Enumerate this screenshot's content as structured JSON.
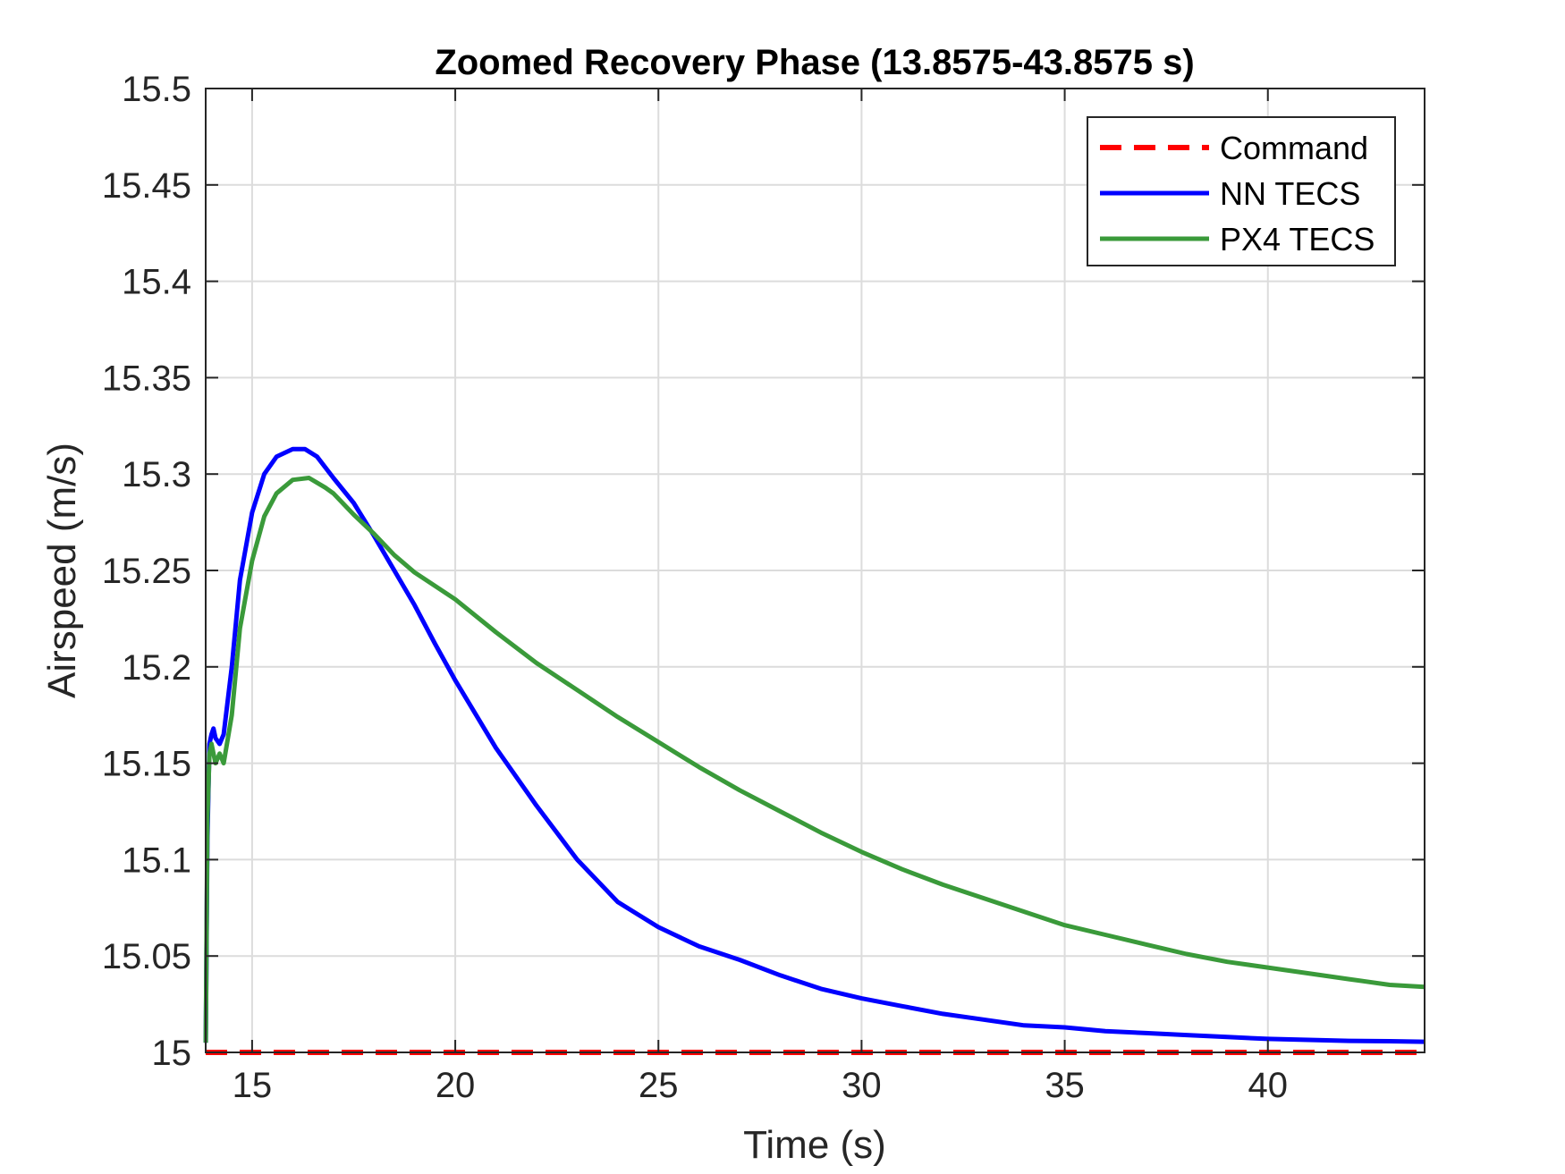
{
  "chart_data": {
    "type": "line",
    "title": "Zoomed Recovery Phase (13.8575-43.8575 s)",
    "xlabel": "Time (s)",
    "ylabel": "Airspeed (m/s)",
    "xlim": [
      13.8575,
      43.8575
    ],
    "ylim": [
      15,
      15.5
    ],
    "xticks": [
      15,
      20,
      25,
      30,
      35,
      40
    ],
    "xtick_labels": [
      "15",
      "20",
      "25",
      "30",
      "35",
      "40"
    ],
    "yticks": [
      15,
      15.05,
      15.1,
      15.15,
      15.2,
      15.25,
      15.3,
      15.35,
      15.4,
      15.45,
      15.5
    ],
    "ytick_labels": [
      "15",
      "15.05",
      "15.1",
      "15.15",
      "15.2",
      "15.25",
      "15.3",
      "15.35",
      "15.4",
      "15.45",
      "15.5"
    ],
    "grid": true,
    "legend_position": "top-right",
    "series": [
      {
        "name": "Command",
        "color": "#ff0000",
        "style": "dashed",
        "x": [
          13.8575,
          43.8575
        ],
        "y": [
          15.0,
          15.0
        ]
      },
      {
        "name": "NN TECS",
        "color": "#0000ff",
        "style": "solid",
        "x": [
          13.86,
          13.9,
          13.95,
          14.0,
          14.05,
          14.1,
          14.2,
          14.3,
          14.5,
          14.7,
          15.0,
          15.3,
          15.6,
          16.0,
          16.3,
          16.6,
          17.0,
          17.5,
          18.0,
          18.5,
          19.0,
          19.5,
          20.0,
          21.0,
          22.0,
          23.0,
          24.0,
          25.0,
          26.0,
          27.0,
          28.0,
          29.0,
          30.0,
          31.0,
          32.0,
          33.0,
          34.0,
          35.0,
          36.0,
          37.0,
          38.0,
          39.0,
          40.0,
          41.0,
          42.0,
          43.0,
          43.8575
        ],
        "y": [
          15.005,
          15.11,
          15.16,
          15.165,
          15.168,
          15.163,
          15.16,
          15.165,
          15.2,
          15.245,
          15.28,
          15.3,
          15.309,
          15.313,
          15.313,
          15.309,
          15.298,
          15.285,
          15.268,
          15.25,
          15.232,
          15.212,
          15.193,
          15.158,
          15.128,
          15.1,
          15.078,
          15.065,
          15.055,
          15.048,
          15.04,
          15.033,
          15.028,
          15.024,
          15.02,
          15.017,
          15.014,
          15.013,
          15.011,
          15.01,
          15.009,
          15.008,
          15.007,
          15.0065,
          15.006,
          15.0058,
          15.0055
        ]
      },
      {
        "name": "PX4 TECS",
        "color": "#3a9a3a",
        "style": "solid",
        "x": [
          13.86,
          13.9,
          13.95,
          14.0,
          14.05,
          14.1,
          14.2,
          14.3,
          14.5,
          14.7,
          15.0,
          15.3,
          15.6,
          16.0,
          16.4,
          16.8,
          17.0,
          17.5,
          18.0,
          18.5,
          19.0,
          20.0,
          21.0,
          22.0,
          23.0,
          24.0,
          25.0,
          26.0,
          27.0,
          28.0,
          29.0,
          30.0,
          31.0,
          32.0,
          33.0,
          34.0,
          35.0,
          36.0,
          37.0,
          38.0,
          39.0,
          40.0,
          41.0,
          42.0,
          43.0,
          43.8575
        ],
        "y": [
          15.005,
          15.12,
          15.155,
          15.16,
          15.155,
          15.15,
          15.155,
          15.15,
          15.175,
          15.22,
          15.255,
          15.278,
          15.29,
          15.297,
          15.298,
          15.293,
          15.29,
          15.279,
          15.269,
          15.258,
          15.249,
          15.235,
          15.218,
          15.202,
          15.188,
          15.174,
          15.161,
          15.148,
          15.136,
          15.125,
          15.114,
          15.104,
          15.095,
          15.087,
          15.08,
          15.073,
          15.066,
          15.061,
          15.056,
          15.051,
          15.047,
          15.044,
          15.041,
          15.038,
          15.035,
          15.034
        ]
      }
    ]
  }
}
